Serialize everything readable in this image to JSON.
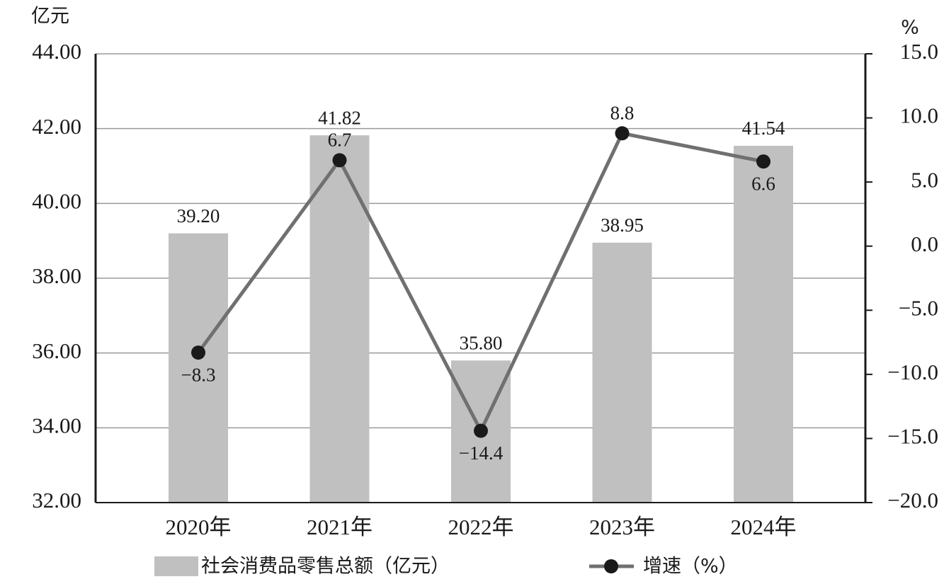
{
  "chart_data": {
    "type": "bar",
    "y_label": "亿元",
    "y2_label": "%",
    "categories": [
      "2020年",
      "2021年",
      "2022年",
      "2023年",
      "2024年"
    ],
    "series": [
      {
        "name": "社会消费品零售总额（亿元）",
        "color": "#c0c0c0",
        "values": [
          39.2,
          41.82,
          35.8,
          38.95,
          41.54
        ],
        "value_labels": [
          "39.20",
          "41.82",
          "35.80",
          "38.95",
          "41.54"
        ]
      },
      {
        "name": "增速（%）",
        "type": "line",
        "axis": "y2",
        "color": "#707070",
        "marker_color": "#1a1a1a",
        "values": [
          -8.3,
          6.7,
          -14.4,
          8.8,
          6.6
        ],
        "value_labels": [
          "−8.3",
          "6.7",
          "−14.4",
          "8.8",
          "6.6"
        ]
      }
    ],
    "ylim": [
      32,
      44
    ],
    "yticks": [
      {
        "value": 32,
        "label": "32.00"
      },
      {
        "value": 34,
        "label": "34.00"
      },
      {
        "value": 36,
        "label": "36.00"
      },
      {
        "value": 38,
        "label": "38.00"
      },
      {
        "value": 40,
        "label": "40.00"
      },
      {
        "value": 42,
        "label": "42.00"
      },
      {
        "value": 44,
        "label": "44.00"
      }
    ],
    "y2lim": [
      -20,
      15
    ],
    "y2ticks": [
      {
        "value": -20,
        "label": "−20.0"
      },
      {
        "value": -15,
        "label": "−15.0"
      },
      {
        "value": -10,
        "label": "−10.0"
      },
      {
        "value": -5,
        "label": "−5.0"
      },
      {
        "value": 0,
        "label": "0.0"
      },
      {
        "value": 5,
        "label": "5.0"
      },
      {
        "value": 10,
        "label": "10.0"
      },
      {
        "value": 15,
        "label": "15.0"
      }
    ],
    "grid": true
  }
}
